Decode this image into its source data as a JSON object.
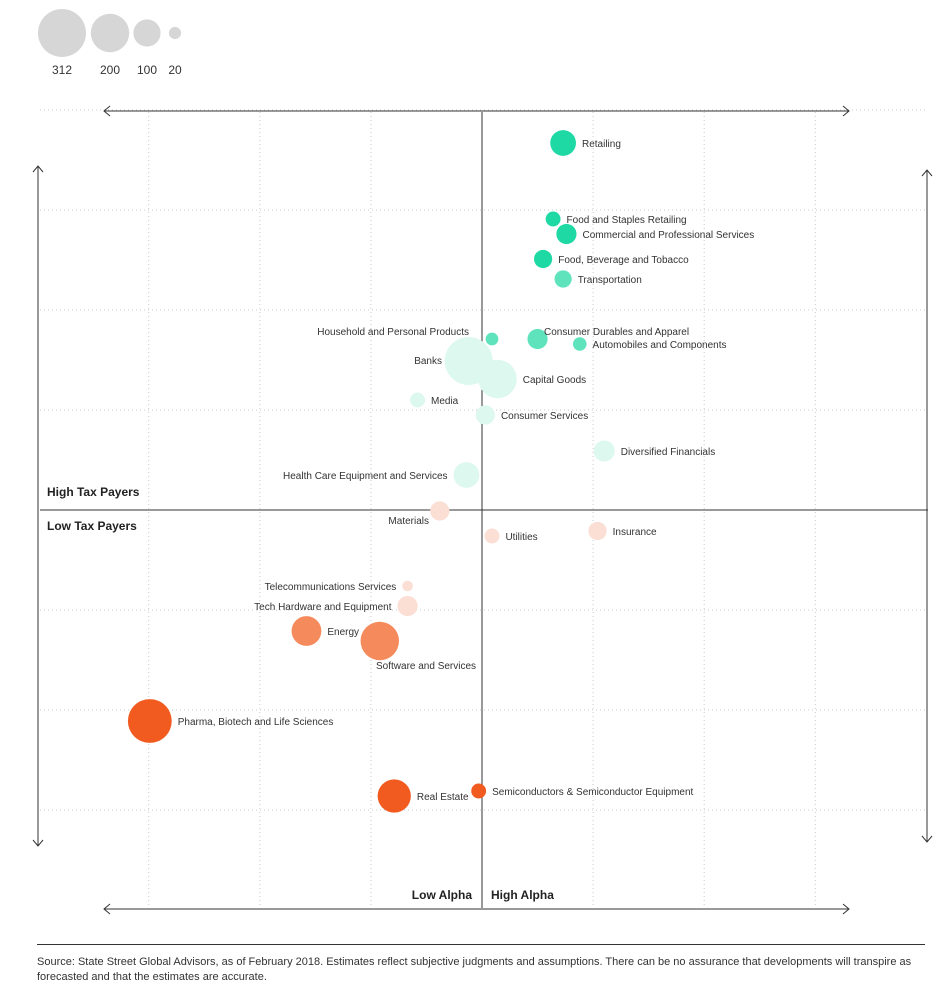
{
  "chart_data": {
    "type": "scatter",
    "xlim": [
      -3,
      3
    ],
    "ylim": [
      -4,
      4
    ],
    "grid": true,
    "size_legend": {
      "placement": "top-left",
      "values": [
        312,
        200,
        100,
        20
      ],
      "labels": [
        "312",
        "200",
        "100",
        "20"
      ]
    },
    "quadrant_labels": {
      "top": "High Tax Payers",
      "bottom": "Low Tax Payers",
      "left": "Low Alpha",
      "right": "High Alpha"
    },
    "colors": {
      "high_strong": "#1ed9a3",
      "high_mid": "#5fe3bd",
      "high_light": "#bff3e3",
      "high_pale": "#dcf8ef",
      "low_pale": "#fbded4",
      "low_light": "#f7c2af",
      "low_mid": "#f58a5c",
      "low_strong": "#f25b1f"
    },
    "points": [
      {
        "name": "Retailing",
        "x": 0.73,
        "y": 3.67,
        "size": 90,
        "color": "high_strong"
      },
      {
        "name": "Food and Staples Retailing",
        "x": 0.64,
        "y": 2.91,
        "size": 30,
        "color": "high_strong"
      },
      {
        "name": "Commercial and Professional Services",
        "x": 0.76,
        "y": 2.76,
        "size": 55,
        "color": "high_strong"
      },
      {
        "name": "Food, Beverage and Tobacco",
        "x": 0.55,
        "y": 2.51,
        "size": 45,
        "color": "high_strong"
      },
      {
        "name": "Transportation",
        "x": 0.73,
        "y": 2.31,
        "size": 40,
        "color": "high_mid"
      },
      {
        "name": "Household and Personal Products",
        "x": 0.09,
        "y": 1.71,
        "size": 22,
        "color": "high_mid"
      },
      {
        "name": "Consumer Durables and Apparel",
        "x": 0.5,
        "y": 1.71,
        "size": 55,
        "color": "high_mid"
      },
      {
        "name": "Automobiles and Components",
        "x": 0.88,
        "y": 1.66,
        "size": 25,
        "color": "high_mid"
      },
      {
        "name": "Banks",
        "x": -0.12,
        "y": 1.49,
        "size": 312,
        "color": "high_pale"
      },
      {
        "name": "Capital Goods",
        "x": 0.14,
        "y": 1.31,
        "size": 200,
        "color": "high_pale"
      },
      {
        "name": "Media",
        "x": -0.58,
        "y": 1.1,
        "size": 30,
        "color": "high_pale"
      },
      {
        "name": "Consumer Services",
        "x": 0.03,
        "y": 0.95,
        "size": 50,
        "color": "high_pale"
      },
      {
        "name": "Diversified Financials",
        "x": 1.1,
        "y": 0.59,
        "size": 60,
        "color": "high_pale"
      },
      {
        "name": "Health Care Equipment and Services",
        "x": -0.14,
        "y": 0.35,
        "size": 90,
        "color": "high_pale"
      },
      {
        "name": "Materials",
        "x": -0.38,
        "y": -0.01,
        "size": 50,
        "color": "low_pale"
      },
      {
        "name": "Utilities",
        "x": 0.09,
        "y": -0.26,
        "size": 30,
        "color": "low_pale"
      },
      {
        "name": "Insurance",
        "x": 1.04,
        "y": -0.21,
        "size": 45,
        "color": "low_pale"
      },
      {
        "name": "Telecommunications Services",
        "x": -0.67,
        "y": -0.76,
        "size": 15,
        "color": "low_pale"
      },
      {
        "name": "Tech Hardware and Equipment",
        "x": -0.67,
        "y": -0.96,
        "size": 55,
        "color": "low_pale"
      },
      {
        "name": "Energy",
        "x": -1.58,
        "y": -1.21,
        "size": 120,
        "color": "low_mid"
      },
      {
        "name": "Software and Services",
        "x": -0.92,
        "y": -1.31,
        "size": 200,
        "color": "low_mid"
      },
      {
        "name": "Pharma, Biotech and Life Sciences",
        "x": -2.99,
        "y": -2.11,
        "size": 260,
        "color": "low_strong"
      },
      {
        "name": "Real Estate",
        "x": -0.79,
        "y": -2.86,
        "size": 150,
        "color": "low_strong"
      },
      {
        "name": "Semiconductors & Semiconductor Equipment",
        "x": -0.03,
        "y": -2.81,
        "size": 30,
        "color": "low_strong"
      }
    ]
  },
  "footer": {
    "source": "Source: State Street Global Advisors, as of February 2018. Estimates reflect subjective judgments and assumptions. There can be no assurance that developments will transpire as forecasted and that the estimates are accurate."
  }
}
